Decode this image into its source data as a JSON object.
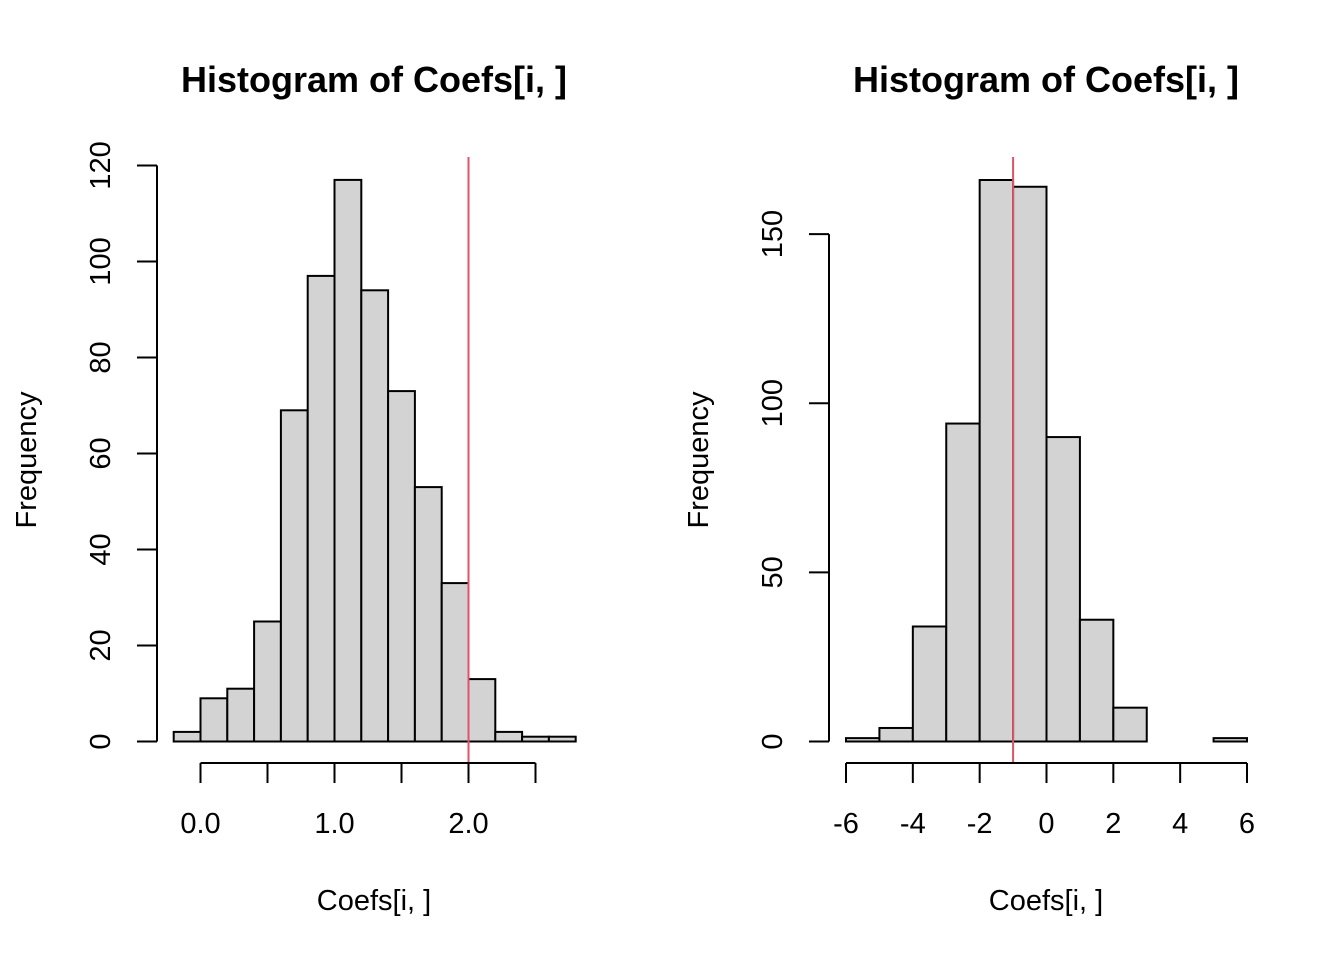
{
  "chart_data": [
    {
      "type": "bar",
      "title": "Histogram of Coefs[i, ]",
      "xlabel": "Coefs[i, ]",
      "ylabel": "Frequency",
      "bin_edges": [
        -0.2,
        0.0,
        0.2,
        0.4,
        0.6,
        0.8,
        1.0,
        1.2,
        1.4,
        1.6,
        1.8,
        2.0,
        2.2,
        2.4,
        2.6,
        2.8
      ],
      "values": [
        2,
        9,
        11,
        25,
        69,
        97,
        117,
        94,
        73,
        53,
        33,
        13,
        2,
        1,
        1
      ],
      "xticks": [
        0.0,
        0.5,
        1.0,
        1.5,
        2.0,
        2.5
      ],
      "xtick_labels": [
        "0.0",
        "",
        "1.0",
        "",
        "2.0",
        ""
      ],
      "yticks": [
        0,
        20,
        40,
        60,
        80,
        100,
        120
      ],
      "ytick_labels": [
        "0",
        "20",
        "40",
        "60",
        "80",
        "100",
        "120"
      ],
      "xlim": [
        -0.2,
        2.8
      ],
      "ylim": [
        0,
        120
      ],
      "vline": 2.0,
      "bar_color": "#d3d3d3",
      "vline_color": "#df536b"
    },
    {
      "type": "bar",
      "title": "Histogram of Coefs[i, ]",
      "xlabel": "Coefs[i, ]",
      "ylabel": "Frequency",
      "bin_edges": [
        -6,
        -5,
        -4,
        -3,
        -2,
        -1,
        0,
        1,
        2,
        3,
        4,
        5,
        6
      ],
      "values": [
        1,
        4,
        34,
        94,
        166,
        164,
        90,
        36,
        10,
        0,
        0,
        1
      ],
      "xticks": [
        -6,
        -4,
        -2,
        0,
        2,
        4,
        6
      ],
      "xtick_labels": [
        "-6",
        "-4",
        "-2",
        "0",
        "2",
        "4",
        "6"
      ],
      "yticks": [
        0,
        50,
        100,
        150
      ],
      "ytick_labels": [
        "0",
        "50",
        "100",
        "150"
      ],
      "xlim": [
        -6,
        6
      ],
      "ylim": [
        0,
        166
      ],
      "vline": -1,
      "bar_color": "#d3d3d3",
      "vline_color": "#df536b"
    }
  ]
}
